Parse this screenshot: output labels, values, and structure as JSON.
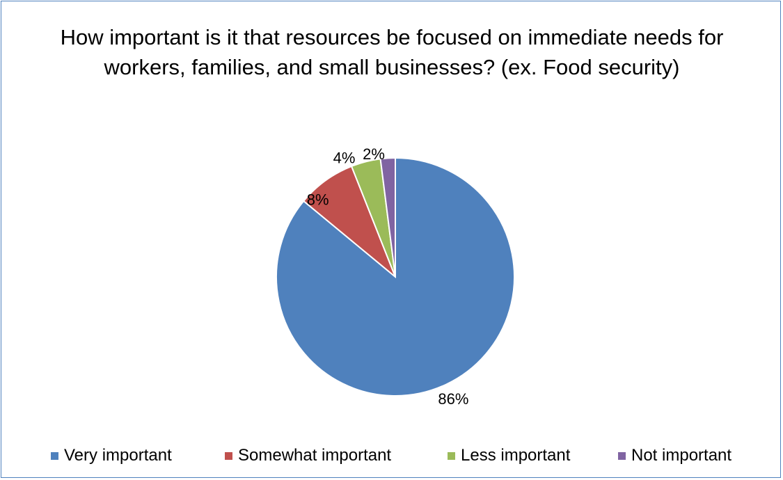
{
  "chart_data": {
    "type": "pie",
    "title": "How important is it that resources be focused on immediate needs for workers, families, and small businesses? (ex. Food security)",
    "categories": [
      "Very important",
      "Somewhat important",
      "Less important",
      "Not important"
    ],
    "values": [
      86,
      8,
      4,
      2
    ],
    "data_labels": [
      "86%",
      "8%",
      "4%",
      "2%"
    ],
    "unit": "%",
    "colors": [
      "#4f81bd",
      "#c0504d",
      "#9bbb59",
      "#8064a2"
    ],
    "legend_position": "bottom",
    "start_angle": "12 o'clock",
    "direction": "clockwise"
  }
}
